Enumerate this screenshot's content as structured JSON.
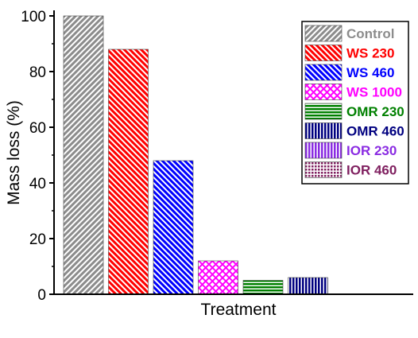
{
  "chart_data": {
    "type": "bar",
    "xlabel": "Treatment",
    "ylabel": "Mass loss (%)",
    "ylim": [
      0,
      100
    ],
    "yticks": [
      "0",
      "20",
      "40",
      "60",
      "80",
      "100"
    ],
    "legend_position": "top-right",
    "series": [
      {
        "name": "Control",
        "value": 100,
        "color": "#8c8c8c",
        "pattern": "diag-right"
      },
      {
        "name": "WS 230",
        "value": 88,
        "color": "#ff0000",
        "pattern": "diag-left"
      },
      {
        "name": "WS 460",
        "value": 48,
        "color": "#0000ff",
        "pattern": "diag-left"
      },
      {
        "name": "WS 1000",
        "value": 12,
        "color": "#ff00ff",
        "pattern": "crosshatch"
      },
      {
        "name": "OMR 230",
        "value": 5,
        "color": "#008000",
        "pattern": "horizontal"
      },
      {
        "name": "OMR 460",
        "value": 6,
        "color": "#000080",
        "pattern": "vertical"
      },
      {
        "name": "IOR 230",
        "value": null,
        "color": "#8a2be2",
        "pattern": "vertical"
      },
      {
        "name": "IOR 460",
        "value": null,
        "color": "#7f1f5f",
        "pattern": "dots"
      }
    ]
  }
}
